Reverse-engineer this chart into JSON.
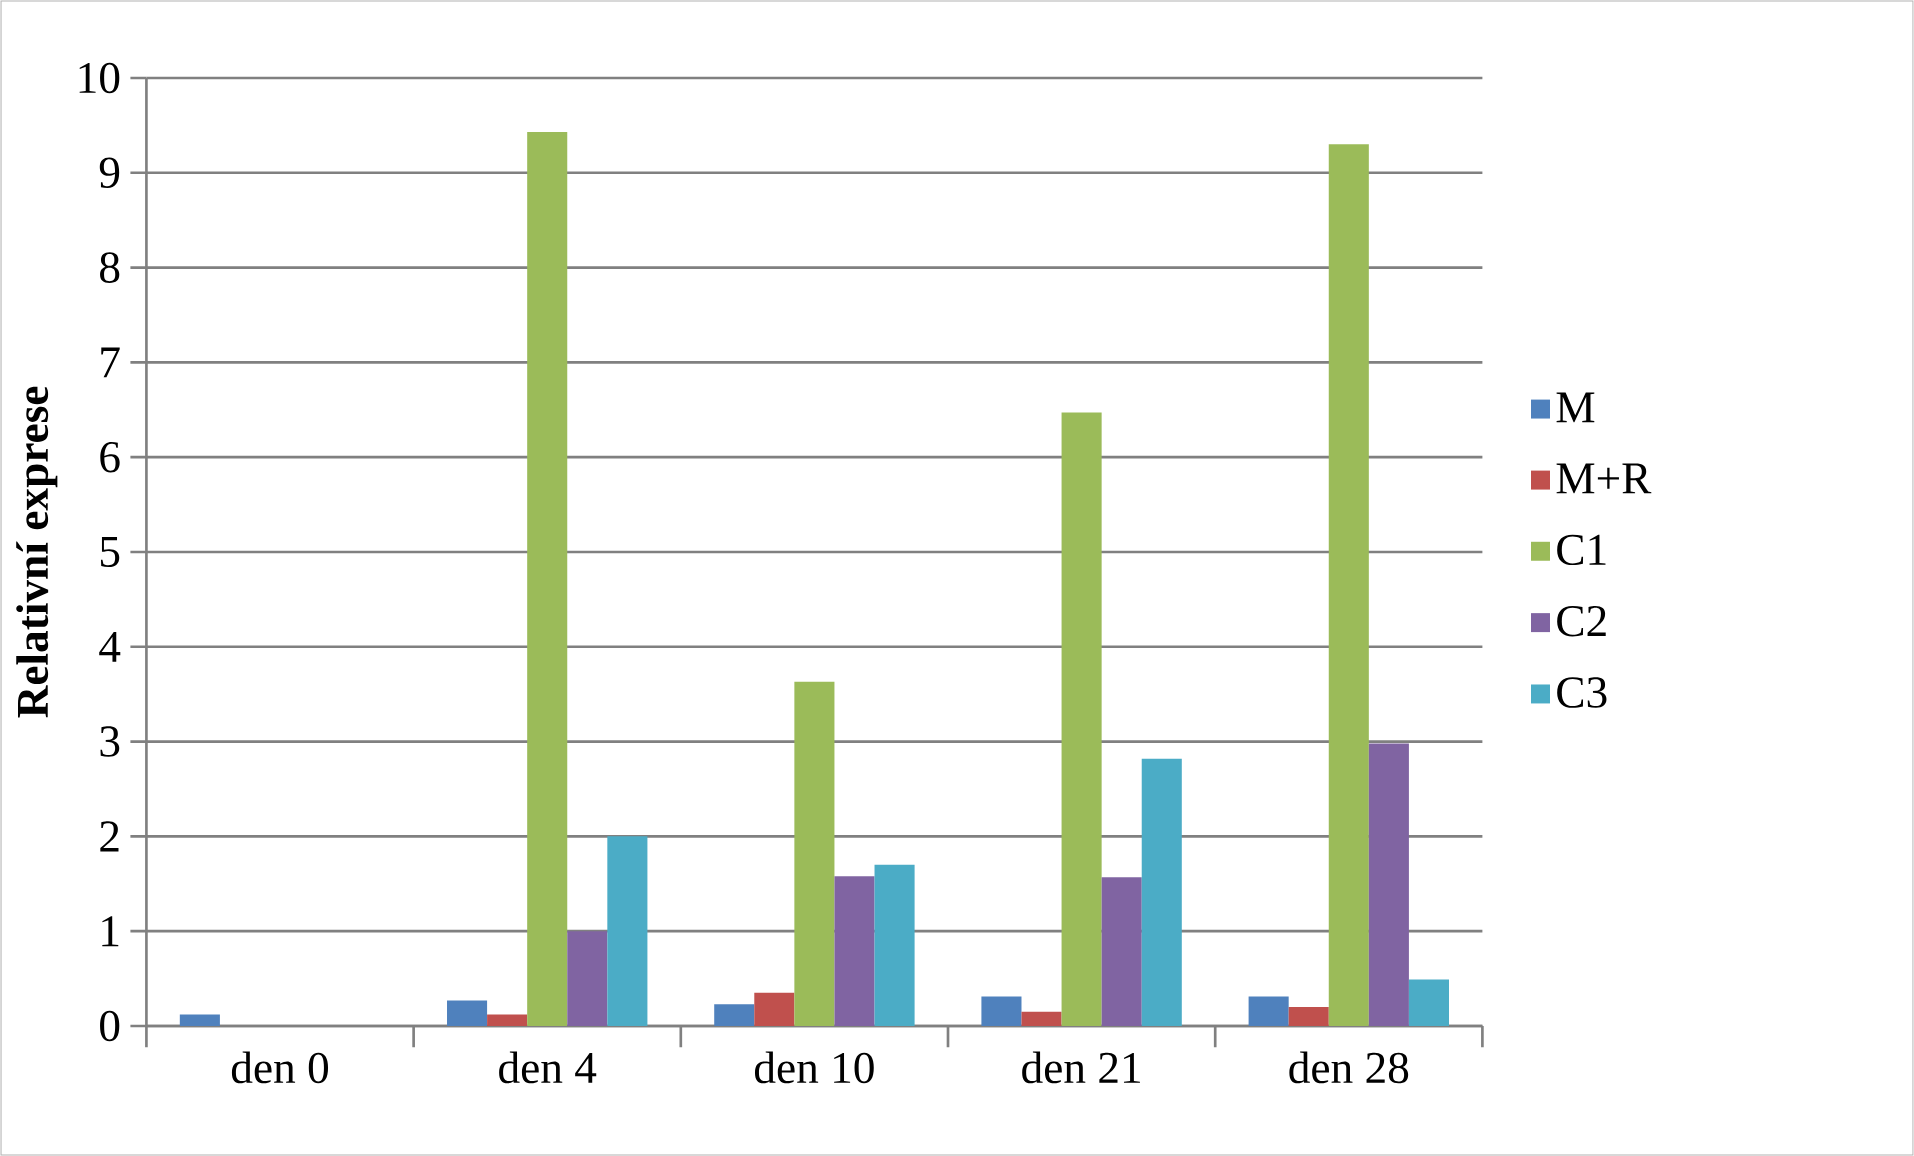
{
  "chart_data": {
    "type": "bar",
    "ylabel": "Relativní exprese",
    "categories": [
      "den 0",
      "den 4",
      "den 10",
      "den 21",
      "den 28"
    ],
    "series": [
      {
        "name": "M",
        "color": "#4f81bd",
        "values": [
          0.12,
          0.27,
          0.23,
          0.31,
          0.31
        ]
      },
      {
        "name": "M+R",
        "color": "#c0504d",
        "values": [
          0,
          0.12,
          0.35,
          0.15,
          0.2
        ]
      },
      {
        "name": "C1",
        "color": "#9bbb59",
        "values": [
          0,
          9.43,
          3.63,
          6.47,
          9.3
        ]
      },
      {
        "name": "C2",
        "color": "#8064a2",
        "values": [
          0,
          1.0,
          1.58,
          1.57,
          2.98
        ]
      },
      {
        "name": "C3",
        "color": "#4bacc6",
        "values": [
          0,
          2.0,
          1.7,
          2.82,
          0.49
        ]
      }
    ],
    "ylim": [
      0,
      10
    ],
    "yticks": [
      0,
      1,
      2,
      3,
      4,
      5,
      6,
      7,
      8,
      9,
      10
    ],
    "grid": "y",
    "legend": "right"
  }
}
